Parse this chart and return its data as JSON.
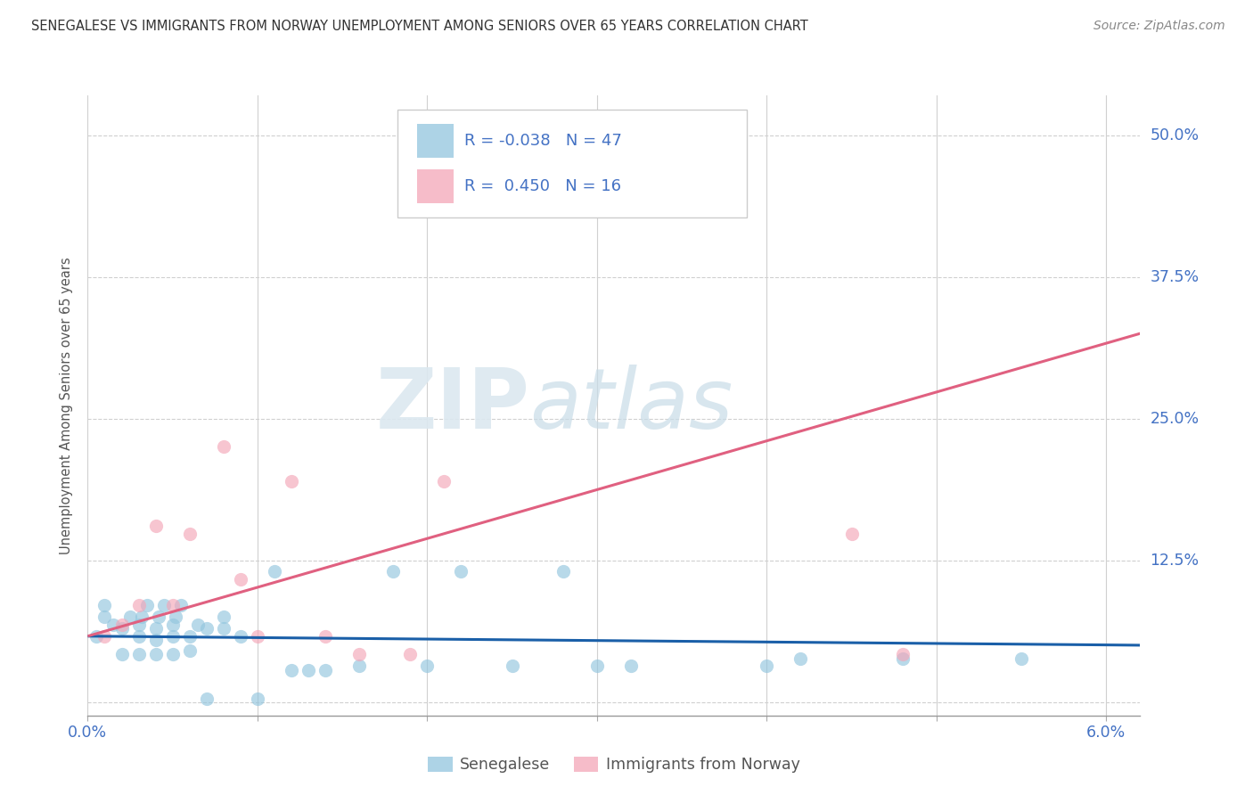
{
  "title": "SENEGALESE VS IMMIGRANTS FROM NORWAY UNEMPLOYMENT AMONG SENIORS OVER 65 YEARS CORRELATION CHART",
  "source": "Source: ZipAtlas.com",
  "ylabel": "Unemployment Among Seniors over 65 years",
  "xlim": [
    0.0,
    0.062
  ],
  "ylim": [
    -0.012,
    0.535
  ],
  "xticks": [
    0.0,
    0.01,
    0.02,
    0.03,
    0.04,
    0.05,
    0.06
  ],
  "xtick_labels": [
    "0.0%",
    "",
    "",
    "",
    "",
    "",
    "6.0%"
  ],
  "ytick_vals": [
    0.0,
    0.125,
    0.25,
    0.375,
    0.5
  ],
  "ytick_labels": [
    "",
    "12.5%",
    "25.0%",
    "37.5%",
    "50.0%"
  ],
  "blue_color": "#92c5de",
  "pink_color": "#f4a6b8",
  "blue_line_color": "#1a5fa8",
  "pink_line_color": "#e06080",
  "blue_dots_x": [
    0.0005,
    0.001,
    0.001,
    0.0015,
    0.002,
    0.002,
    0.0025,
    0.003,
    0.003,
    0.003,
    0.0032,
    0.0035,
    0.004,
    0.004,
    0.004,
    0.0042,
    0.0045,
    0.005,
    0.005,
    0.005,
    0.0052,
    0.0055,
    0.006,
    0.006,
    0.0065,
    0.007,
    0.007,
    0.008,
    0.008,
    0.009,
    0.01,
    0.011,
    0.012,
    0.013,
    0.014,
    0.016,
    0.018,
    0.02,
    0.022,
    0.025,
    0.028,
    0.03,
    0.032,
    0.04,
    0.042,
    0.048,
    0.055
  ],
  "blue_dots_y": [
    0.058,
    0.075,
    0.085,
    0.068,
    0.042,
    0.065,
    0.075,
    0.042,
    0.058,
    0.068,
    0.075,
    0.085,
    0.042,
    0.055,
    0.065,
    0.075,
    0.085,
    0.042,
    0.058,
    0.068,
    0.075,
    0.085,
    0.045,
    0.058,
    0.068,
    0.003,
    0.065,
    0.065,
    0.075,
    0.058,
    0.003,
    0.115,
    0.028,
    0.028,
    0.028,
    0.032,
    0.115,
    0.032,
    0.115,
    0.032,
    0.115,
    0.032,
    0.032,
    0.032,
    0.038,
    0.038,
    0.038
  ],
  "pink_dots_x": [
    0.001,
    0.002,
    0.003,
    0.004,
    0.005,
    0.006,
    0.008,
    0.009,
    0.01,
    0.012,
    0.014,
    0.016,
    0.019,
    0.021,
    0.045,
    0.048
  ],
  "pink_dots_y": [
    0.058,
    0.068,
    0.085,
    0.155,
    0.085,
    0.148,
    0.225,
    0.108,
    0.058,
    0.195,
    0.058,
    0.042,
    0.042,
    0.195,
    0.148,
    0.042
  ],
  "blue_trend_x": [
    0.0,
    0.062
  ],
  "blue_trend_y": [
    0.058,
    0.05
  ],
  "pink_trend_x": [
    0.0,
    0.062
  ],
  "pink_trend_y": [
    0.058,
    0.325
  ],
  "background_color": "#ffffff",
  "grid_color": "#d0d0d0",
  "title_color": "#333333",
  "axis_label_color": "#4472c4",
  "legend_text_color": "#4472c4"
}
